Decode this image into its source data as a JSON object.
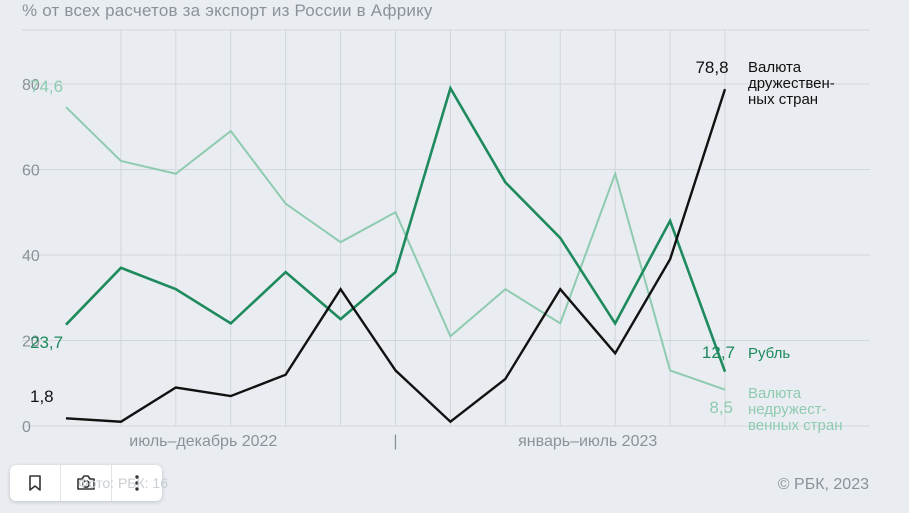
{
  "header": {
    "subtitle": "% от всех расчетов за экспорт из России в Африку"
  },
  "footer": {
    "credit": "© РБК, 2023",
    "faint_text": "Фото: РБК: 16"
  },
  "toolbar": [
    {
      "name": "bookmark-button",
      "icon": "bookmark-icon"
    },
    {
      "name": "camera-button",
      "icon": "camera-icon"
    },
    {
      "name": "more-button",
      "icon": "more-vertical-icon"
    }
  ],
  "colors": {
    "friendly": "#111111",
    "ruble": "#1e8a5e",
    "unfriendly": "#8fcbb0",
    "grid": "#d2d7dc",
    "axis_text": "#8a9299"
  },
  "chart_data": {
    "type": "line",
    "title": "",
    "ylim": [
      0,
      80
    ],
    "yticks": [
      0,
      20,
      40,
      60,
      80
    ],
    "grid": true,
    "x_groups": [
      {
        "label": "июль–декабрь 2022",
        "from": 0,
        "to": 5
      },
      {
        "label": "январь–июль 2023",
        "from": 7,
        "to": 12
      }
    ],
    "group_separator": "|",
    "x": [
      0,
      1,
      2,
      3,
      4,
      5,
      6,
      7,
      8,
      9,
      10,
      11,
      12
    ],
    "series": [
      {
        "key": "unfriendly",
        "name": "Валюта недружественных стран",
        "label_lines": [
          "Валюта",
          "недружест-",
          "венных стран"
        ],
        "values": [
          74.6,
          62,
          59,
          69,
          52,
          43,
          50,
          21,
          32,
          24,
          59,
          13,
          8.5
        ],
        "start_label": "74,6",
        "end_label": "8,5"
      },
      {
        "key": "ruble",
        "name": "Рубль",
        "label_lines": [
          "Рубль"
        ],
        "values": [
          23.7,
          37,
          32,
          24,
          36,
          25,
          36,
          79,
          57,
          44,
          24,
          48,
          12.7
        ],
        "start_label": "23,7",
        "end_label": "12,7"
      },
      {
        "key": "friendly",
        "name": "Валюта дружественных стран",
        "label_lines": [
          "Валюта",
          "дружествен-",
          "ных стран"
        ],
        "values": [
          1.8,
          1,
          9,
          7,
          12,
          32,
          13,
          1,
          11,
          32,
          17,
          39,
          78.8
        ],
        "start_label": "1,8",
        "end_label": "78,8"
      }
    ]
  }
}
